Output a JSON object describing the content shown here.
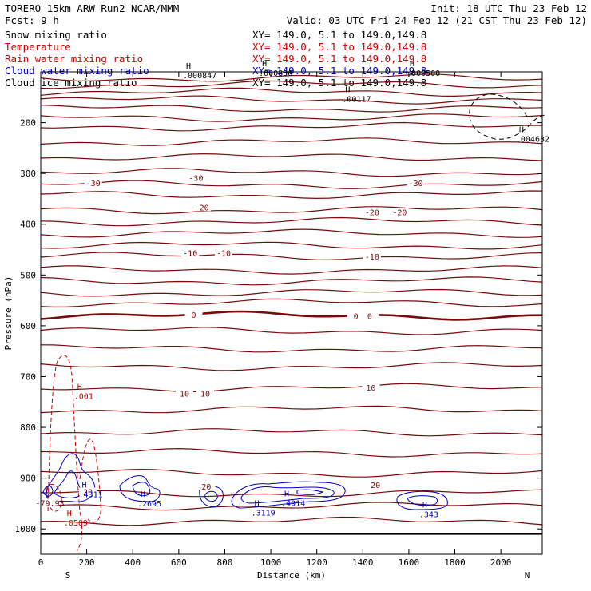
{
  "header": {
    "left1": "TORERO  15km ARW   Run2    NCAR/MMM",
    "left2": "Fcst:    9 h",
    "init": "Init: 18 UTC Thu 23 Feb 12",
    "valid": "Valid: 03 UTC Fri 24 Feb 12 (21 CST Thu 23 Feb 12)"
  },
  "legend": [
    {
      "name": "Snow mixing ratio",
      "xy": "",
      "color": "#000000"
    },
    {
      "name": "Temperature",
      "xy": "XY= 149.0,  5.1 to 149.0,149.8",
      "color": "#cc0000"
    },
    {
      "name": "Rain water mixing ratio",
      "xy": "XY= 149.0,  5.1 to 149.0,149.8",
      "color": "#cc0000"
    },
    {
      "name": "Cloud water mixing ratio",
      "xy": "XY= 149.0,  5.1 to 149.0,149.8",
      "color": "#0000cc"
    },
    {
      "name": "Cloud ice mixing ratio",
      "xy": "XY= 149.0,  5.1 to 149.0,149.8",
      "color": "#000000"
    }
  ],
  "snow_xy": "XY= 149.0,  5.1 to 149.0,149.8",
  "colors": {
    "temperature": "#7a0a0a",
    "rain": "#cc0000",
    "cloud_water": "#0000cc",
    "cloud_ice": "#000000",
    "axis": "#000000"
  },
  "chart_data": {
    "type": "contour",
    "title": "",
    "xlabel": "Distance (km)",
    "ylabel": "Pressure (hPa)",
    "x_ticks": [
      0,
      200,
      400,
      600,
      800,
      1000,
      1200,
      1400,
      1600,
      1800,
      2000
    ],
    "x_tick_labels": [
      "0",
      "200",
      "400",
      "600",
      "800",
      "1000",
      "1200",
      "1400",
      "1600",
      "1800",
      "2000"
    ],
    "y_ticks": [
      200,
      300,
      400,
      500,
      600,
      700,
      800,
      900,
      1000
    ],
    "y_tick_labels": [
      "200",
      "300",
      "400",
      "500",
      "600",
      "700",
      "800",
      "900",
      "1000"
    ],
    "xlim": [
      0,
      2180
    ],
    "ylim": [
      1050,
      100
    ],
    "y_scale": "linear",
    "grid": false,
    "end_labels": {
      "left": "S",
      "right": "N"
    },
    "temperature_contour_labels": [
      {
        "x": 40,
        "p": 950,
        "text": "-79.93"
      },
      {
        "x": 228,
        "p": 320,
        "text": "-30"
      },
      {
        "x": 675,
        "p": 310,
        "text": "-30"
      },
      {
        "x": 1630,
        "p": 320,
        "text": "-30"
      },
      {
        "x": 700,
        "p": 368,
        "text": "-20"
      },
      {
        "x": 1440,
        "p": 378,
        "text": "-20"
      },
      {
        "x": 1560,
        "p": 378,
        "text": "-20"
      },
      {
        "x": 650,
        "p": 458,
        "text": "-10"
      },
      {
        "x": 795,
        "p": 458,
        "text": "-10"
      },
      {
        "x": 1440,
        "p": 465,
        "text": "-10"
      },
      {
        "x": 665,
        "p": 580,
        "text": "0"
      },
      {
        "x": 1370,
        "p": 582,
        "text": "0"
      },
      {
        "x": 1430,
        "p": 582,
        "text": "0"
      },
      {
        "x": 625,
        "p": 735,
        "text": "10"
      },
      {
        "x": 715,
        "p": 735,
        "text": "10"
      },
      {
        "x": 1435,
        "p": 723,
        "text": "10"
      },
      {
        "x": 205,
        "p": 928,
        "text": "20"
      },
      {
        "x": 720,
        "p": 918,
        "text": "20"
      },
      {
        "x": 1455,
        "p": 915,
        "text": "20"
      }
    ],
    "maxima": [
      {
        "field": "cloud_ice",
        "x": 618,
        "p": 97,
        "text": ".000847"
      },
      {
        "field": "cloud_ice",
        "x": 948,
        "p": 92,
        "text": ".000836"
      },
      {
        "field": "cloud_ice",
        "x": 1590,
        "p": 92,
        "text": ".000500"
      },
      {
        "field": "cloud_ice",
        "x": 1310,
        "p": 143,
        "text": ".00117"
      },
      {
        "field": "cloud_ice",
        "x": 2065,
        "p": 222,
        "text": ".004632"
      },
      {
        "field": "cloud_water",
        "x": 165,
        "p": 922,
        "text": ".4311"
      },
      {
        "field": "cloud_water",
        "x": 420,
        "p": 940,
        "text": ".2695"
      },
      {
        "field": "cloud_water",
        "x": 915,
        "p": 958,
        "text": ".3119"
      },
      {
        "field": "cloud_water",
        "x": 1045,
        "p": 939,
        "text": ".4914"
      },
      {
        "field": "cloud_water",
        "x": 1645,
        "p": 961,
        "text": ".343"
      },
      {
        "field": "rain",
        "x": 100,
        "p": 978,
        "text": ".0509"
      },
      {
        "field": "rain",
        "x": 145,
        "p": 728,
        "text": ".001"
      }
    ],
    "maximum_marker": "H",
    "series": [
      {
        "field": "temperature",
        "name": "Temperature",
        "x": [
          0,
          2180
        ],
        "contour_levels_p": [
          112,
          125,
          140,
          155,
          172,
          190,
          208,
          238,
          268,
          298,
          322,
          342,
          372,
          395,
          418,
          442,
          463,
          490,
          512,
          535,
          555,
          580,
          610,
          645,
          680,
          722,
          765,
          810,
          850,
          890,
          930,
          955,
          985
        ]
      }
    ]
  }
}
